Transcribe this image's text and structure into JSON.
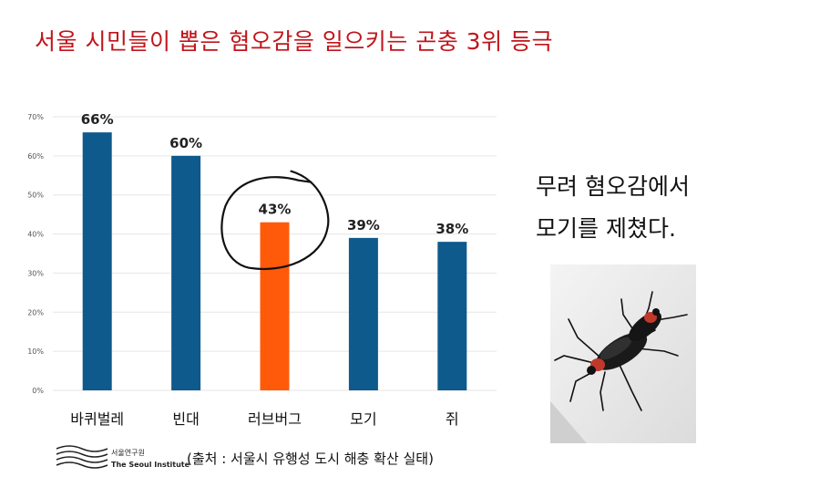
{
  "page": {
    "title": "서울 시민들이 뽑은 혐오감을 일으키는 곤충 3위 등극",
    "note_lines": [
      "무려 혐오감에서",
      "모기를 제쳤다."
    ],
    "source": "(출처 : 서울시 유행성 도시 해충 확산 실태)",
    "logo_ko": "서울연구원",
    "logo_en": "The Seoul Institute"
  },
  "chart_data": {
    "type": "bar",
    "categories": [
      "바퀴벌레",
      "빈대",
      "러브버그",
      "모기",
      "쥐"
    ],
    "values": [
      66,
      60,
      43,
      39,
      38
    ],
    "data_labels": [
      "66%",
      "60%",
      "43%",
      "39%",
      "38%"
    ],
    "ylim": [
      0,
      70
    ],
    "yticks": [
      0,
      10,
      20,
      30,
      40,
      50,
      60,
      70
    ],
    "ytick_labels": [
      "0%",
      "10%",
      "20%",
      "30%",
      "40%",
      "50%",
      "60%",
      "70%"
    ],
    "highlight_category": "러브버그",
    "colors": {
      "bar": "#0f5a8c",
      "highlight": "#ff5a0a",
      "circle": "#111111"
    },
    "grid": true
  }
}
